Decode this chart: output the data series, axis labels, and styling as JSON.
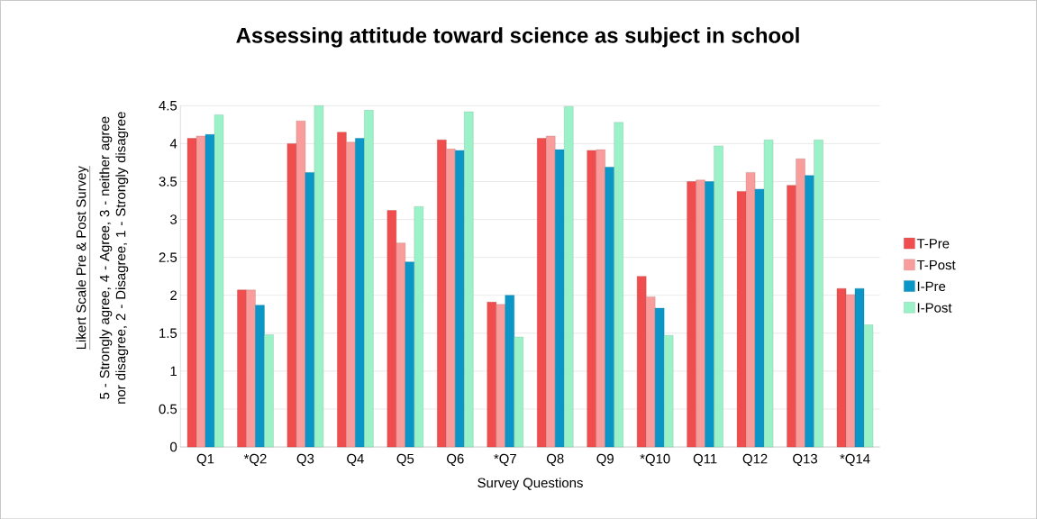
{
  "chart_data": {
    "type": "bar",
    "title": "Assessing attitude toward science as subject in school",
    "xlabel": "Survey Questions",
    "ylabel": "5 - Strongly agree, 4 - Agree, 3 - neither agree nor disagree, 2 - Disagree, 1 - Strongly disagree",
    "annotations": [
      "Likert Scale Pre & Post Survey"
    ],
    "categories": [
      "Q1",
      "*Q2",
      "Q3",
      "Q4",
      "Q5",
      "Q6",
      "*Q7",
      "Q8",
      "Q9",
      "*Q10",
      "Q11",
      "Q12",
      "Q13",
      "*Q14"
    ],
    "series": [
      {
        "name": "T-Pre",
        "color": "#f04e4e",
        "values": [
          4.07,
          2.07,
          4.0,
          4.15,
          3.12,
          4.05,
          1.91,
          4.07,
          3.91,
          2.25,
          3.5,
          3.37,
          3.45,
          2.09
        ]
      },
      {
        "name": "T-Post",
        "color": "#f89c9c",
        "values": [
          4.1,
          2.07,
          4.3,
          4.02,
          2.69,
          3.93,
          1.88,
          4.1,
          3.92,
          1.98,
          3.52,
          3.62,
          3.8,
          2.01
        ]
      },
      {
        "name": "I-Pre",
        "color": "#0a97c8",
        "values": [
          4.12,
          1.87,
          3.62,
          4.07,
          2.44,
          3.91,
          2.0,
          3.92,
          3.69,
          1.83,
          3.5,
          3.4,
          3.58,
          2.09
        ]
      },
      {
        "name": "I-Post",
        "color": "#9cf2c8",
        "values": [
          4.38,
          1.48,
          4.5,
          4.44,
          3.17,
          4.42,
          1.45,
          4.49,
          4.28,
          1.47,
          3.97,
          4.05,
          4.05,
          1.61
        ]
      }
    ],
    "ylim": [
      0,
      4.5
    ],
    "yticks": [
      0,
      0.5,
      1,
      1.5,
      2,
      2.5,
      3,
      3.5,
      4,
      4.5
    ],
    "grid": "y",
    "legend": "right"
  }
}
